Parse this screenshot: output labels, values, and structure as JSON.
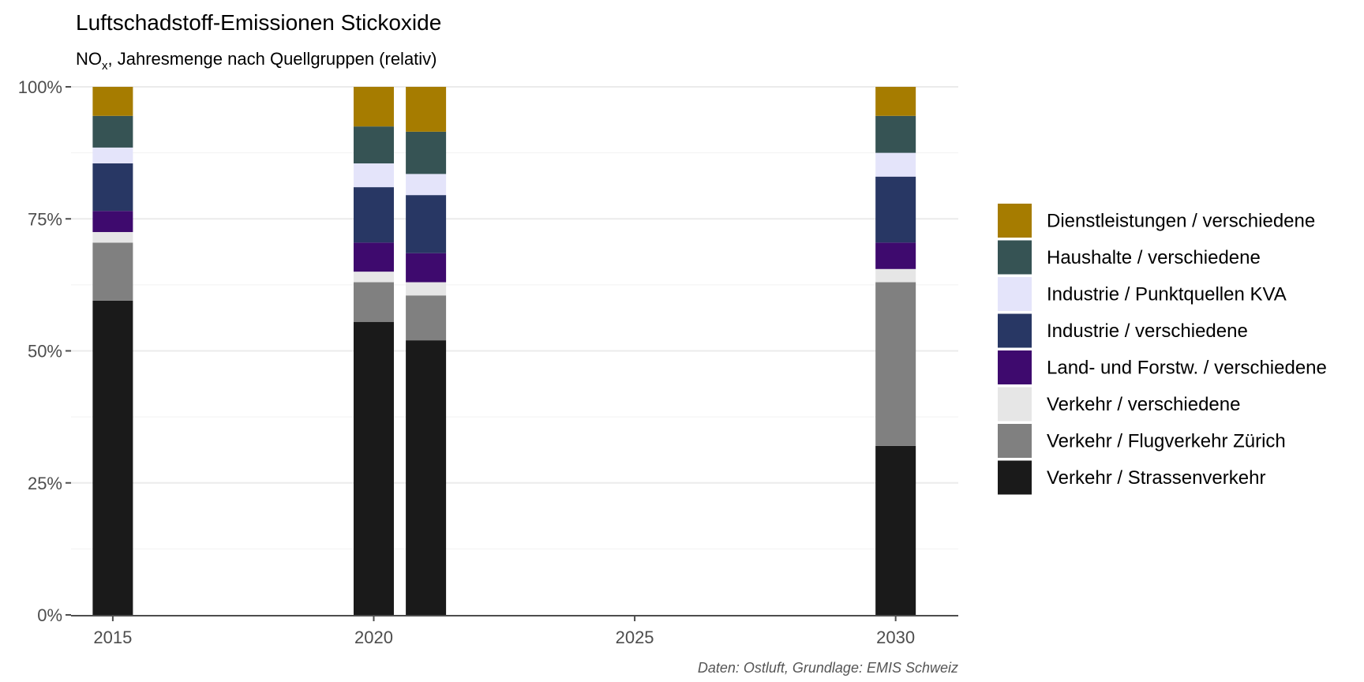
{
  "chart_data": {
    "type": "bar",
    "stacked": true,
    "relative": true,
    "title": "Luftschadstoff-Emissionen Stickoxide",
    "subtitle": {
      "main": "NO",
      "subscript": "x",
      "rest": ", Jahresmenge nach Quellgruppen (relativ)"
    },
    "caption": "Daten: Ostluft, Grundlage: EMIS Schweiz",
    "xlabel": "",
    "ylabel": "",
    "x": [
      2015,
      2020,
      2021,
      2030
    ],
    "xlim": [
      2014.2,
      2031.2
    ],
    "xticks": [
      2015,
      2020,
      2025,
      2030
    ],
    "ylim": [
      0,
      100
    ],
    "yticks": [
      0,
      25,
      50,
      75,
      100
    ],
    "yticklabels": [
      "0%",
      "25%",
      "50%",
      "75%",
      "100%"
    ],
    "grid": true,
    "legend_position": "right",
    "series": [
      {
        "name": "Verkehr / Strassenverkehr",
        "color": "#1a1a1a",
        "values": [
          59.5,
          55.5,
          52.0,
          32.0
        ]
      },
      {
        "name": "Verkehr / Flugverkehr Zürich",
        "color": "#808080",
        "values": [
          11.0,
          7.5,
          8.5,
          31.0
        ]
      },
      {
        "name": "Verkehr / verschiedene",
        "color": "#e6e6e6",
        "values": [
          2.0,
          2.0,
          2.5,
          2.5
        ]
      },
      {
        "name": "Land- und Forstw. / verschiedene",
        "color": "#3e0a6e",
        "values": [
          4.0,
          5.5,
          5.5,
          5.0
        ]
      },
      {
        "name": "Industrie / verschiedene",
        "color": "#283764",
        "values": [
          9.0,
          10.5,
          11.0,
          12.5
        ]
      },
      {
        "name": "Industrie / Punktquellen KVA",
        "color": "#e4e4fa",
        "values": [
          3.0,
          4.5,
          4.0,
          4.5
        ]
      },
      {
        "name": "Haushalte / verschiedene",
        "color": "#365354",
        "values": [
          6.0,
          7.0,
          8.0,
          7.0
        ]
      },
      {
        "name": "Dienstleistungen / verschiedene",
        "color": "#a67c00",
        "values": [
          5.5,
          7.5,
          8.5,
          5.5
        ]
      }
    ]
  }
}
